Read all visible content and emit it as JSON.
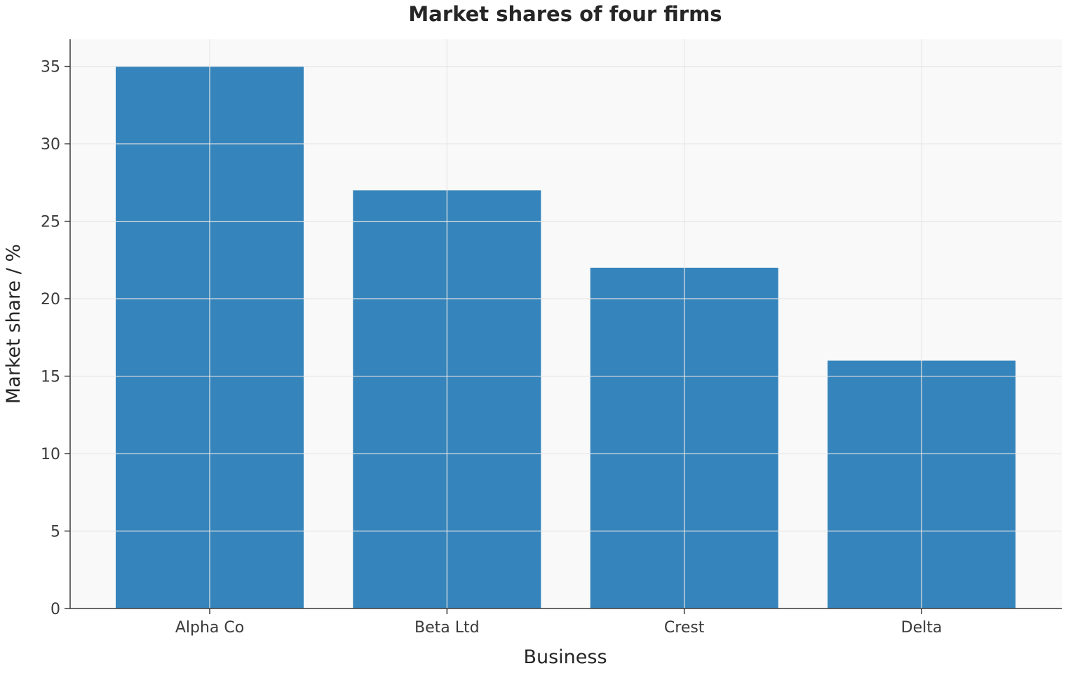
{
  "chart_data": {
    "type": "bar",
    "title": "Market shares of four firms",
    "xlabel": "Business",
    "ylabel": "Market share / %",
    "categories": [
      "Alpha Co",
      "Beta Ltd",
      "Crest",
      "Delta"
    ],
    "values": [
      35,
      27,
      22,
      16
    ],
    "ylim": [
      0,
      36.75
    ],
    "yticks": [
      "0",
      "5",
      "10",
      "15",
      "20",
      "25",
      "30",
      "35"
    ],
    "grid": true,
    "legend": "none",
    "colors": {
      "bar": "#3584bb",
      "plot_background": "#f9f9f9",
      "grid": "#e6e6e6",
      "axis": "#3a3a3a"
    }
  }
}
